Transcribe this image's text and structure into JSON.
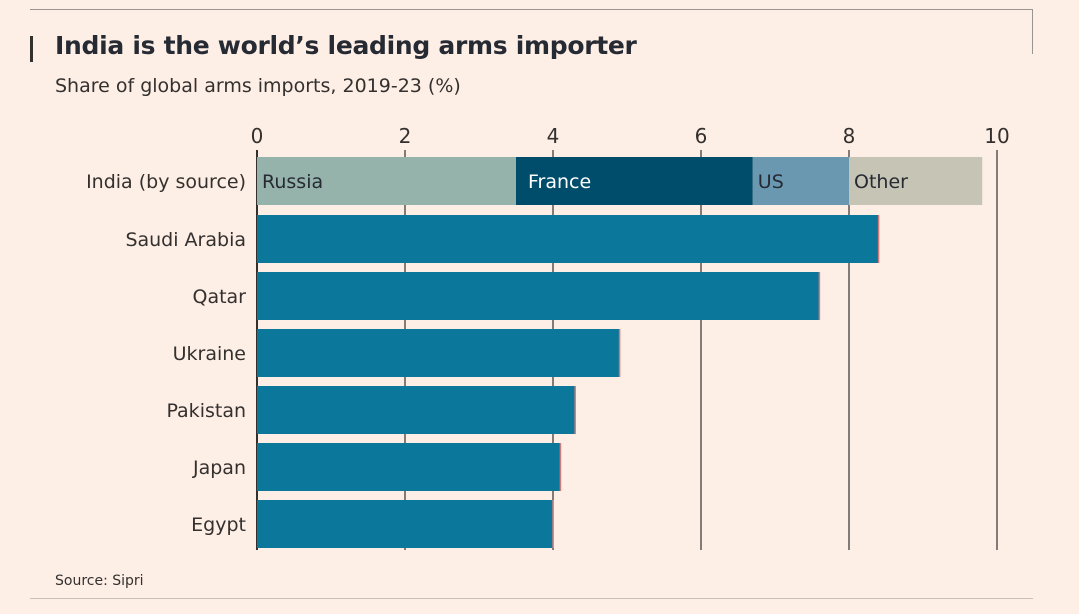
{
  "chart_data": {
    "type": "bar",
    "orientation": "horizontal",
    "title": "India is the world’s leading arms importer",
    "subtitle": "Share of global arms imports, 2019-23 (%)",
    "source": "Source: Sipri",
    "xlim": [
      0,
      10
    ],
    "x_ticks": [
      0,
      2,
      4,
      6,
      8,
      10
    ],
    "grid": true,
    "stacked_row": {
      "category": "India (by source)",
      "segments": [
        {
          "name": "Russia",
          "value": 3.5,
          "color": "#96b3ab",
          "label_color": "#262a33"
        },
        {
          "name": "France",
          "value": 3.2,
          "color": "#004d6b",
          "label_color": "#ffffff"
        },
        {
          "name": "US",
          "value": 1.3,
          "color": "#6a98b0",
          "label_color": "#262a33"
        },
        {
          "name": "Other",
          "value": 1.8,
          "color": "#c6c5b5",
          "label_color": "#262a33"
        }
      ]
    },
    "categories": [
      "Saudi Arabia",
      "Qatar",
      "Ukraine",
      "Pakistan",
      "Japan",
      "Egypt"
    ],
    "values": [
      8.4,
      7.6,
      4.9,
      4.3,
      4.1,
      4.0
    ],
    "bar_color": "#0a779b"
  }
}
